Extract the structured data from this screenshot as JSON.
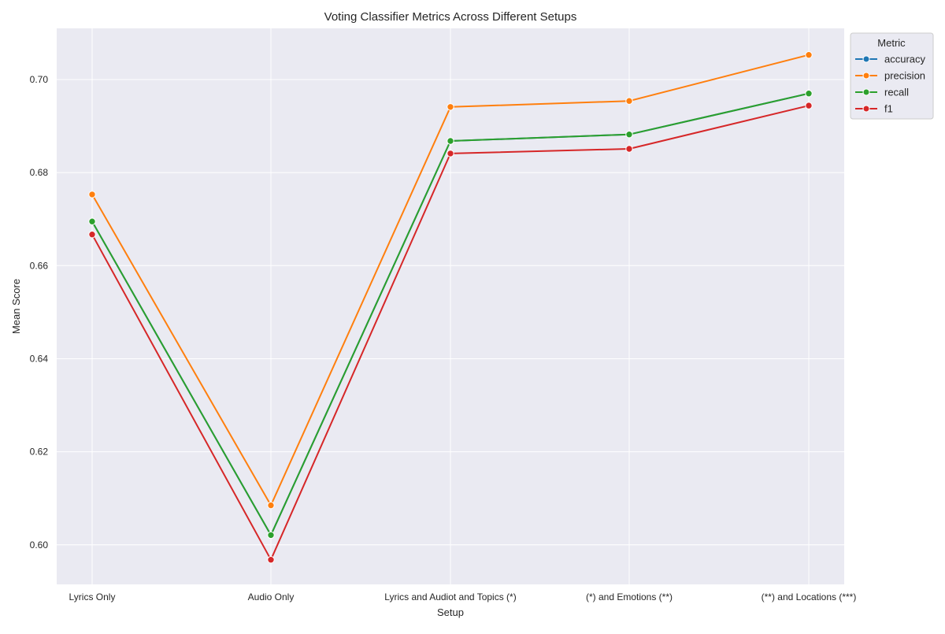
{
  "chart_data": {
    "type": "line",
    "title": "Voting Classifier Metrics Across Different Setups",
    "xlabel": "Setup",
    "ylabel": "Mean Score",
    "categories": [
      "Lyrics Only",
      "Audio Only",
      "Lyrics and Audiot and Topics (*)",
      "(*) and Emotions (**)",
      "(**) and Locations (***)"
    ],
    "ylim": [
      0.5915,
      0.711
    ],
    "yticks": [
      0.6,
      0.62,
      0.64,
      0.66,
      0.68,
      0.7
    ],
    "ytick_labels": [
      "0.60",
      "0.62",
      "0.64",
      "0.66",
      "0.68",
      "0.70"
    ],
    "grid": true,
    "legend": {
      "title": "Metric",
      "placement": "upper-right-outside"
    },
    "series": [
      {
        "name": "accuracy",
        "color": "#1f77b4",
        "values": [
          0.6695,
          0.6021,
          0.6868,
          0.6882,
          0.697
        ]
      },
      {
        "name": "precision",
        "color": "#ff7f0e",
        "values": [
          0.6753,
          0.6085,
          0.6941,
          0.6954,
          0.7053
        ]
      },
      {
        "name": "recall",
        "color": "#2ca02c",
        "values": [
          0.6695,
          0.6021,
          0.6868,
          0.6882,
          0.697
        ]
      },
      {
        "name": "f1",
        "color": "#d62728",
        "values": [
          0.6667,
          0.5968,
          0.6841,
          0.6851,
          0.6944
        ]
      }
    ]
  }
}
